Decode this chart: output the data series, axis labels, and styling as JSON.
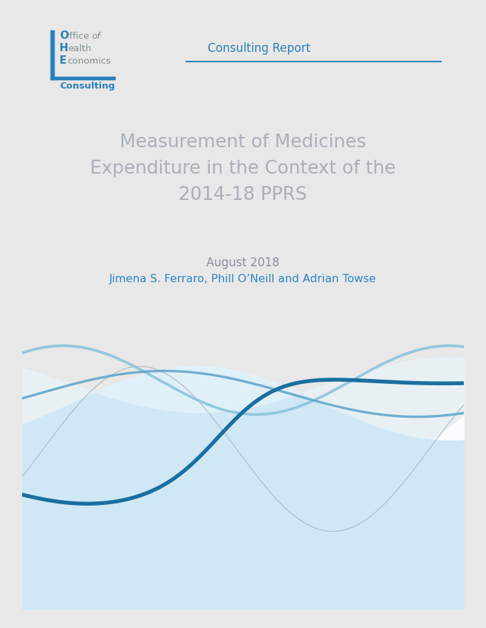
{
  "bg_color": "#e8e8e8",
  "page_bg": "#ffffff",
  "title_text": "Measurement of Medicines\nExpenditure in the Context of the\n2014-18 PPRS",
  "title_color": "#aab0b8",
  "date_text": "August 2018",
  "date_color": "#888f99",
  "authors_text": "Jimena S. Ferraro, Phill O’Neill and Adrian Towse",
  "authors_color": "#2e86c1",
  "consulting_report_text": "Consulting Report",
  "consulting_report_color": "#2980b9",
  "separator_color": "#2980b9",
  "ohe_O_color": "#2980b9",
  "ohe_text_color": "#7f8c8d",
  "ohe_consulting_color": "#2980b9",
  "wave_fill_main": "#d0e8f5",
  "wave_fill_light": "#e8f4fa",
  "wave_fill_white": "#f0f8fc",
  "wave_dark_blue": "#1a6fa0",
  "wave_medium_blue": "#5ba3c9",
  "wave_light_blue": "#8cc4dc",
  "wave_gray": "#aab0b8",
  "bottom_fill": "#cde4f0"
}
